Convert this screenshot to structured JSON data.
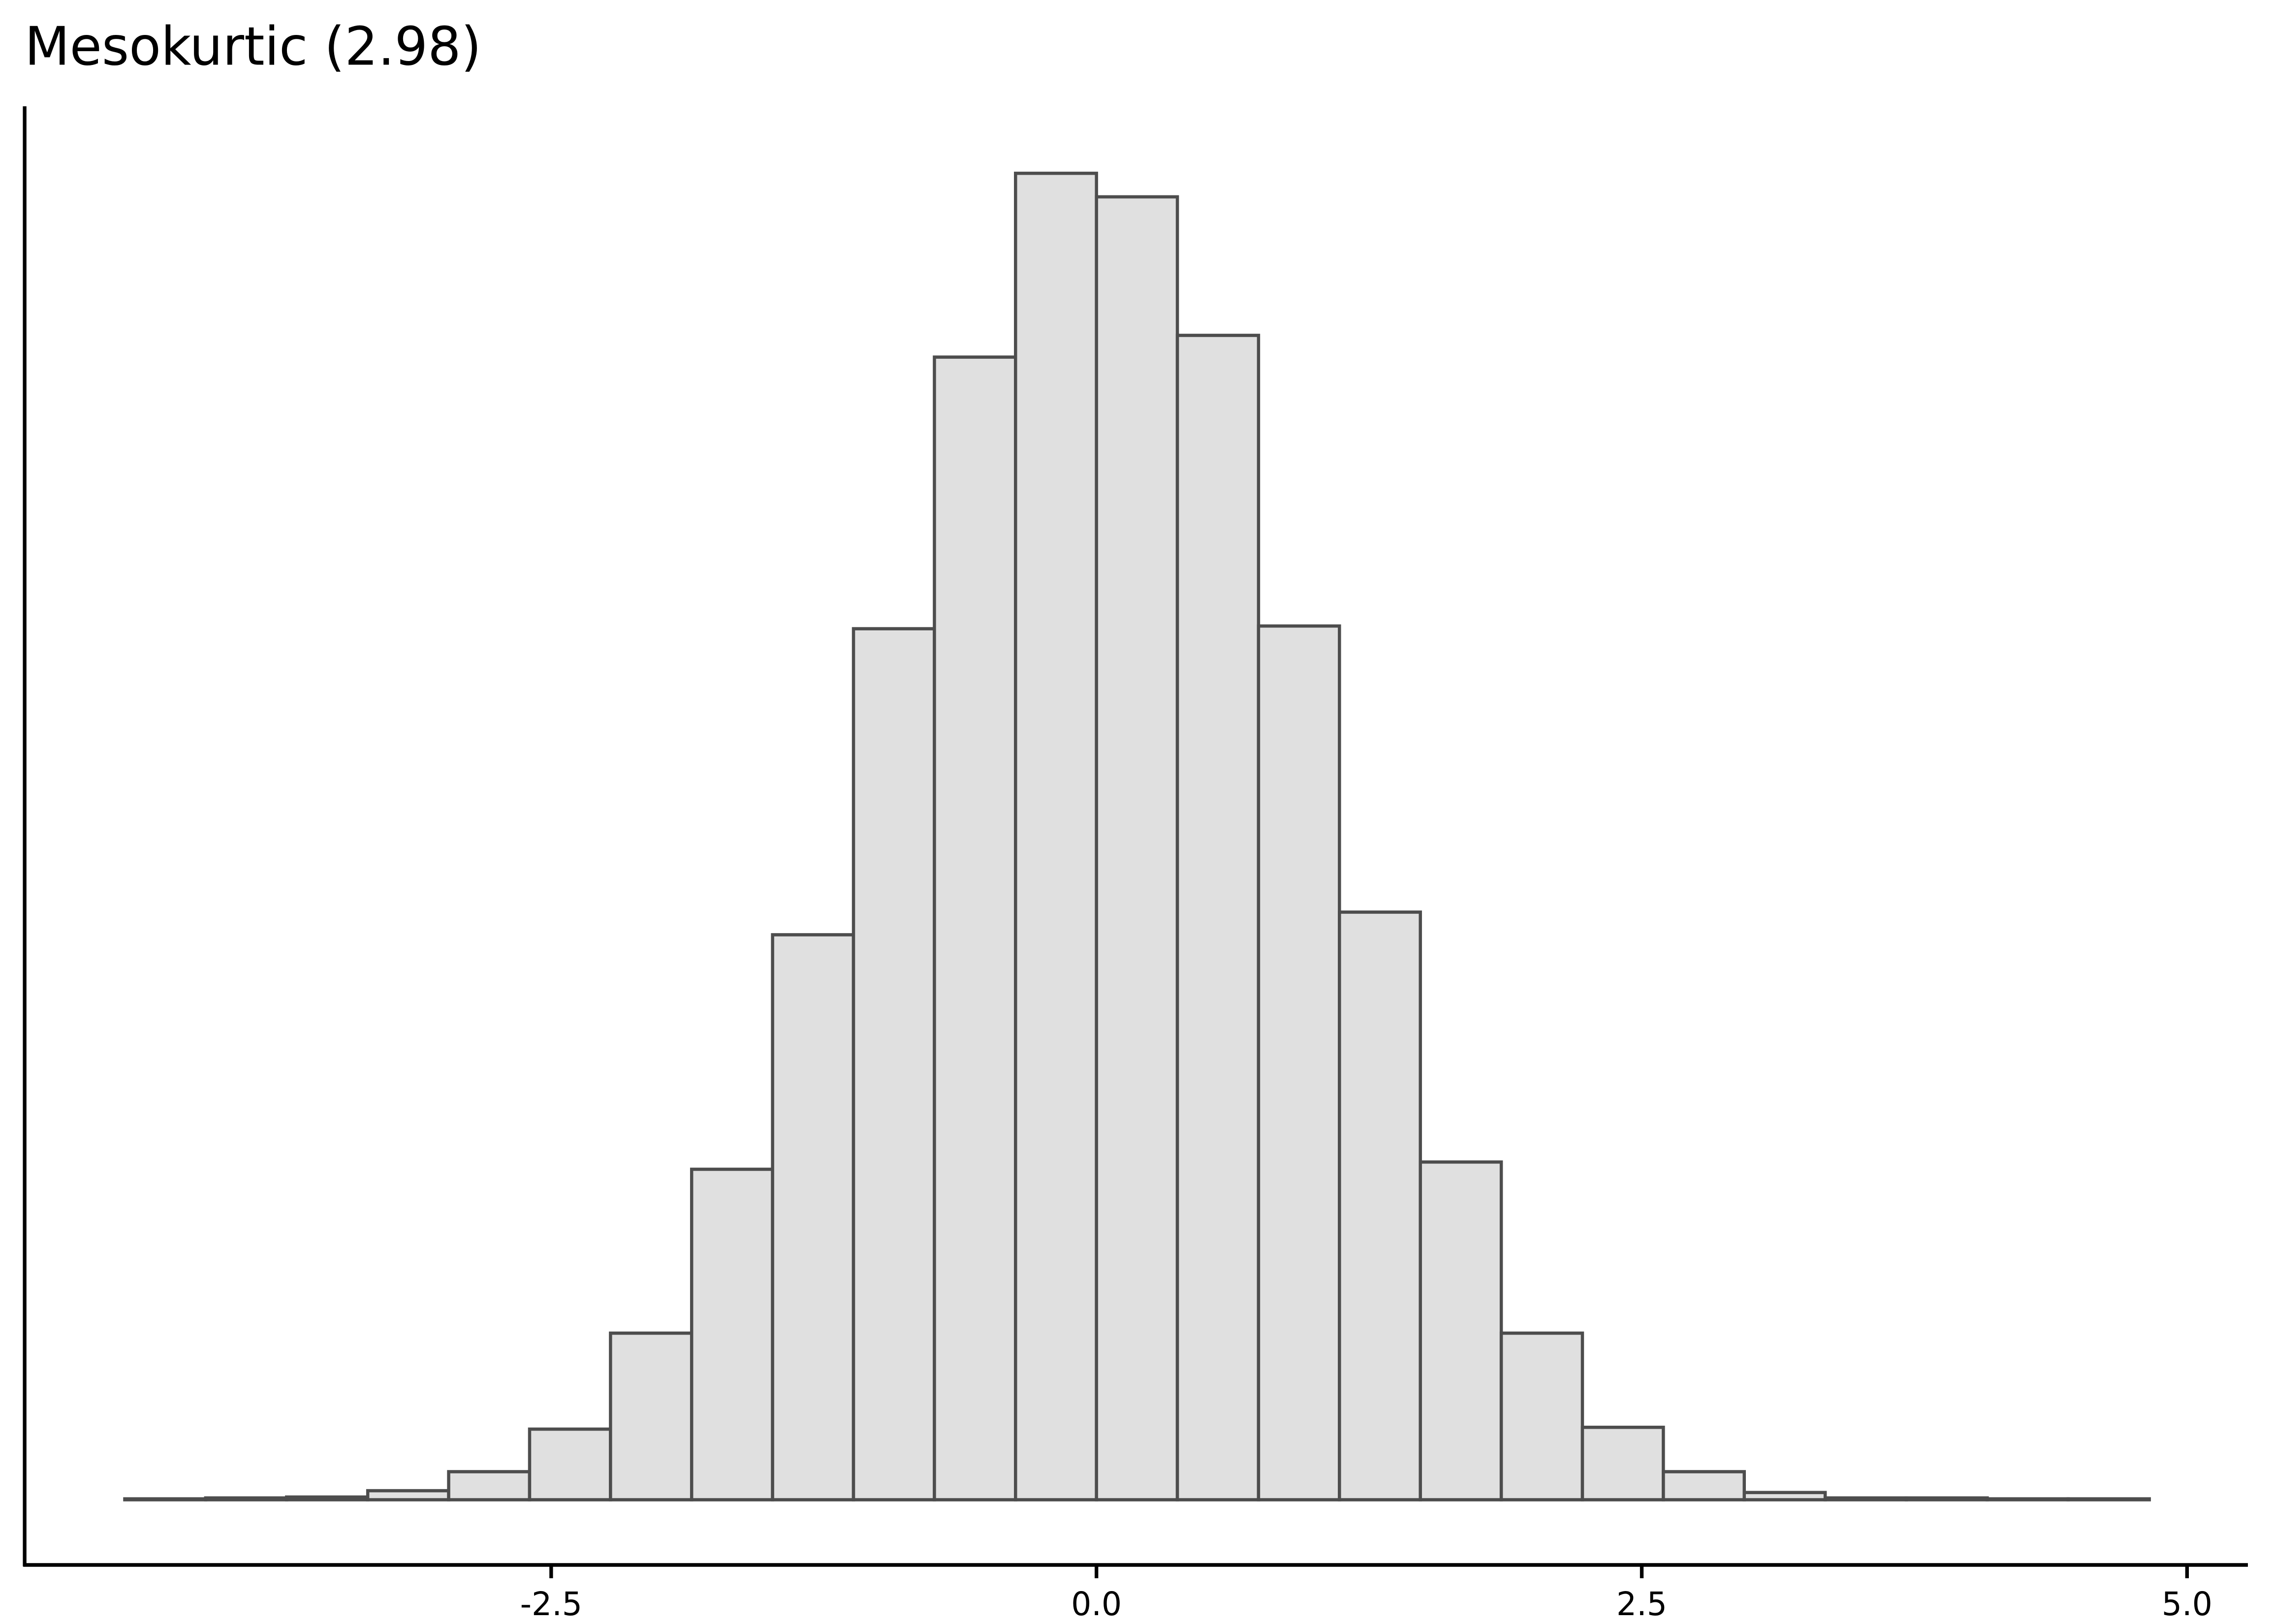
{
  "chart_data": {
    "type": "histogram",
    "title": "Mesokurtic (2.98)",
    "bins": [
      -4.455,
      -4.084,
      -3.713,
      -3.341,
      -2.97,
      -2.599,
      -2.228,
      -1.856,
      -1.485,
      -1.114,
      -0.743,
      -0.371,
      0,
      0.371,
      0.743,
      1.114,
      1.485,
      1.856,
      2.228,
      2.599,
      2.97,
      3.341,
      3.713,
      4.084,
      4.455,
      4.827
    ],
    "values": [
      1,
      2,
      3,
      10,
      31,
      78,
      184,
      365,
      624,
      962,
      1262,
      1465,
      1439,
      1286,
      965,
      649,
      373,
      184,
      80,
      31,
      8,
      2,
      2,
      1,
      1
    ],
    "color": "#e0e0e0",
    "edgecolor": "#4d4d4d",
    "xlim": [
      -4.914,
      5.279
    ],
    "ylim": [
      -72,
      1539
    ],
    "xticks": [
      -2.5,
      {
        "value": 0,
        "label": "0.0"
      },
      2.5,
      {
        "value": 5,
        "label": "5.0"
      }
    ],
    "grid": false
  }
}
